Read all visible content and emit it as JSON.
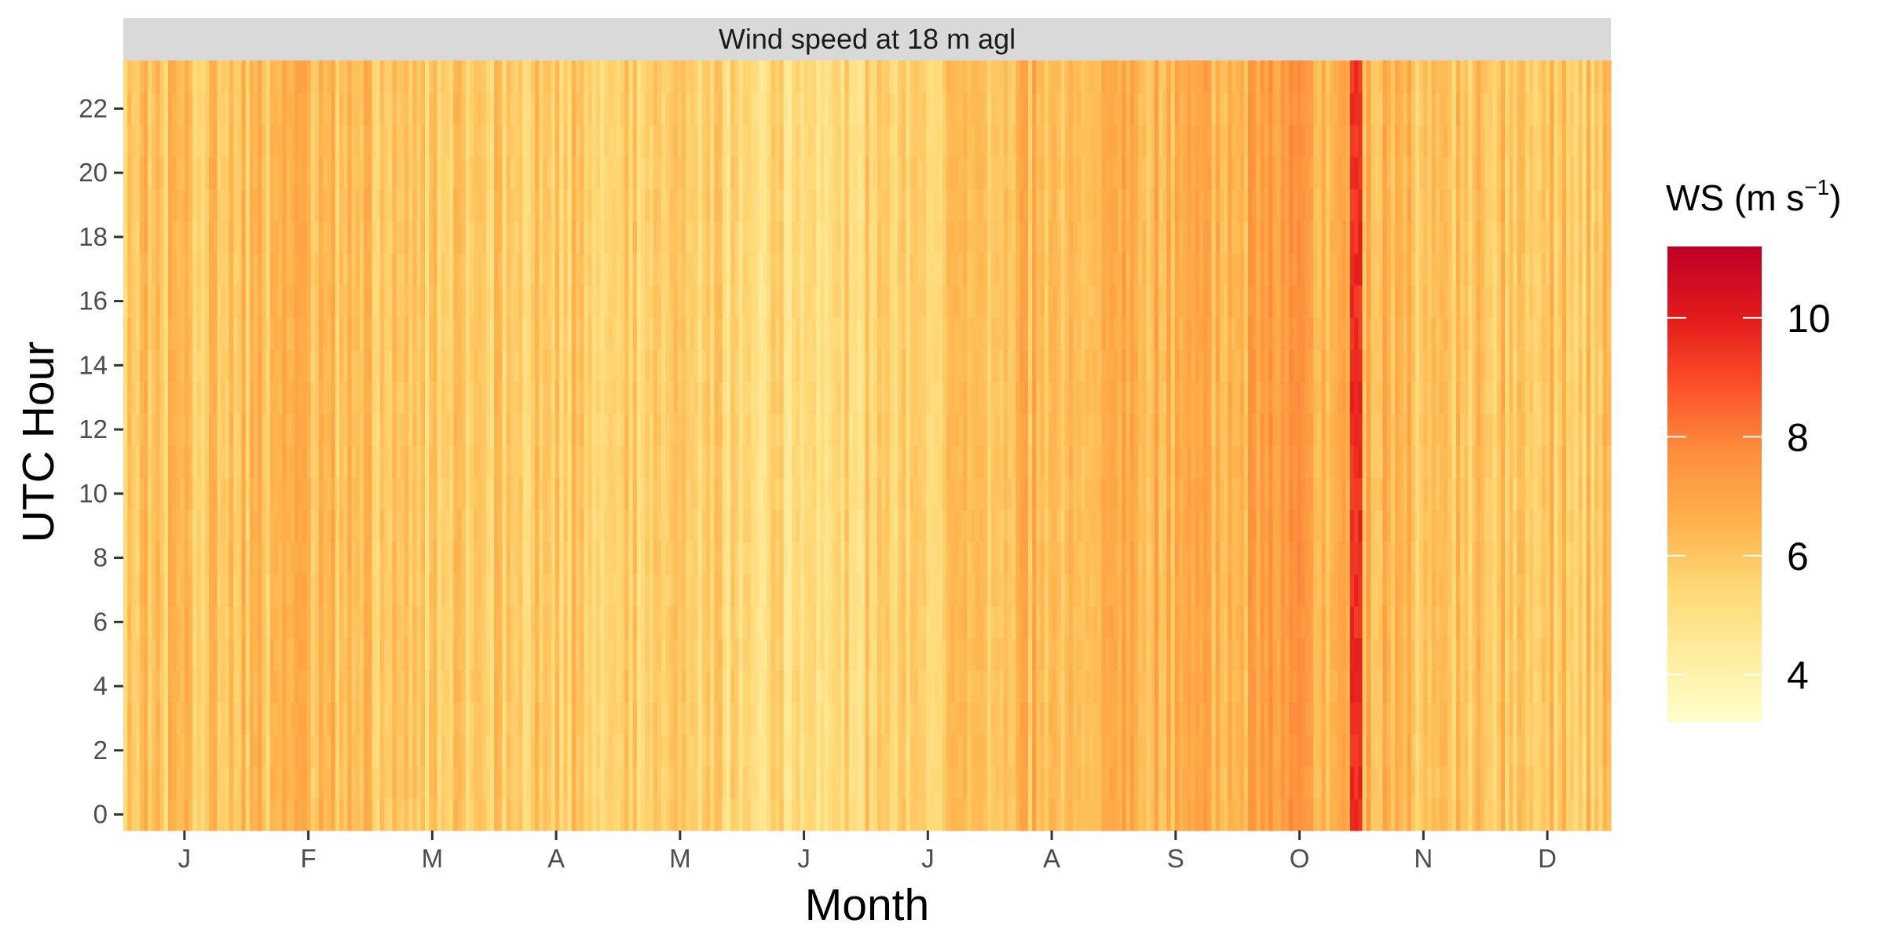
{
  "chart_data": {
    "type": "heatmap",
    "panel_title": "Wind speed at 18 m agl",
    "xlabel": "Month",
    "ylabel": "UTC Hour",
    "x_tick_labels": [
      "J",
      "F",
      "M",
      "A",
      "M",
      "J",
      "J",
      "A",
      "S",
      "O",
      "N",
      "D"
    ],
    "x_range_days": [
      1,
      365
    ],
    "y_ticks": [
      0,
      2,
      4,
      6,
      8,
      10,
      12,
      14,
      16,
      18,
      20,
      22
    ],
    "y_range": [
      0,
      23
    ],
    "legend": {
      "title_main": "WS (m s",
      "title_sup": "−1",
      "title_close": ")",
      "ticks": [
        4,
        6,
        8,
        10
      ],
      "range": [
        3.2,
        11.2
      ],
      "colors": [
        "#ffffcc",
        "#ffeda0",
        "#fed976",
        "#feb24c",
        "#fd8d3c",
        "#fc4e2a",
        "#e31a1c",
        "#bd0026"
      ],
      "position": "right"
    },
    "seasonal_mean_by_month": [
      {
        "month": "J",
        "ws": 6.1
      },
      {
        "month": "F",
        "ws": 6.4
      },
      {
        "month": "M",
        "ws": 5.8
      },
      {
        "month": "A",
        "ws": 6.0
      },
      {
        "month": "M",
        "ws": 5.7
      },
      {
        "month": "J",
        "ws": 5.3
      },
      {
        "month": "J",
        "ws": 5.9
      },
      {
        "month": "A",
        "ws": 6.5
      },
      {
        "month": "S",
        "ws": 6.6
      },
      {
        "month": "O",
        "ws": 7.0
      },
      {
        "month": "N",
        "ws": 6.2
      },
      {
        "month": "D",
        "ws": 6.0
      }
    ],
    "events": [
      {
        "day_start": 302,
        "day_end": 304,
        "ws": 9.6,
        "note": "high-wind streak late October"
      }
    ],
    "grid": false
  }
}
